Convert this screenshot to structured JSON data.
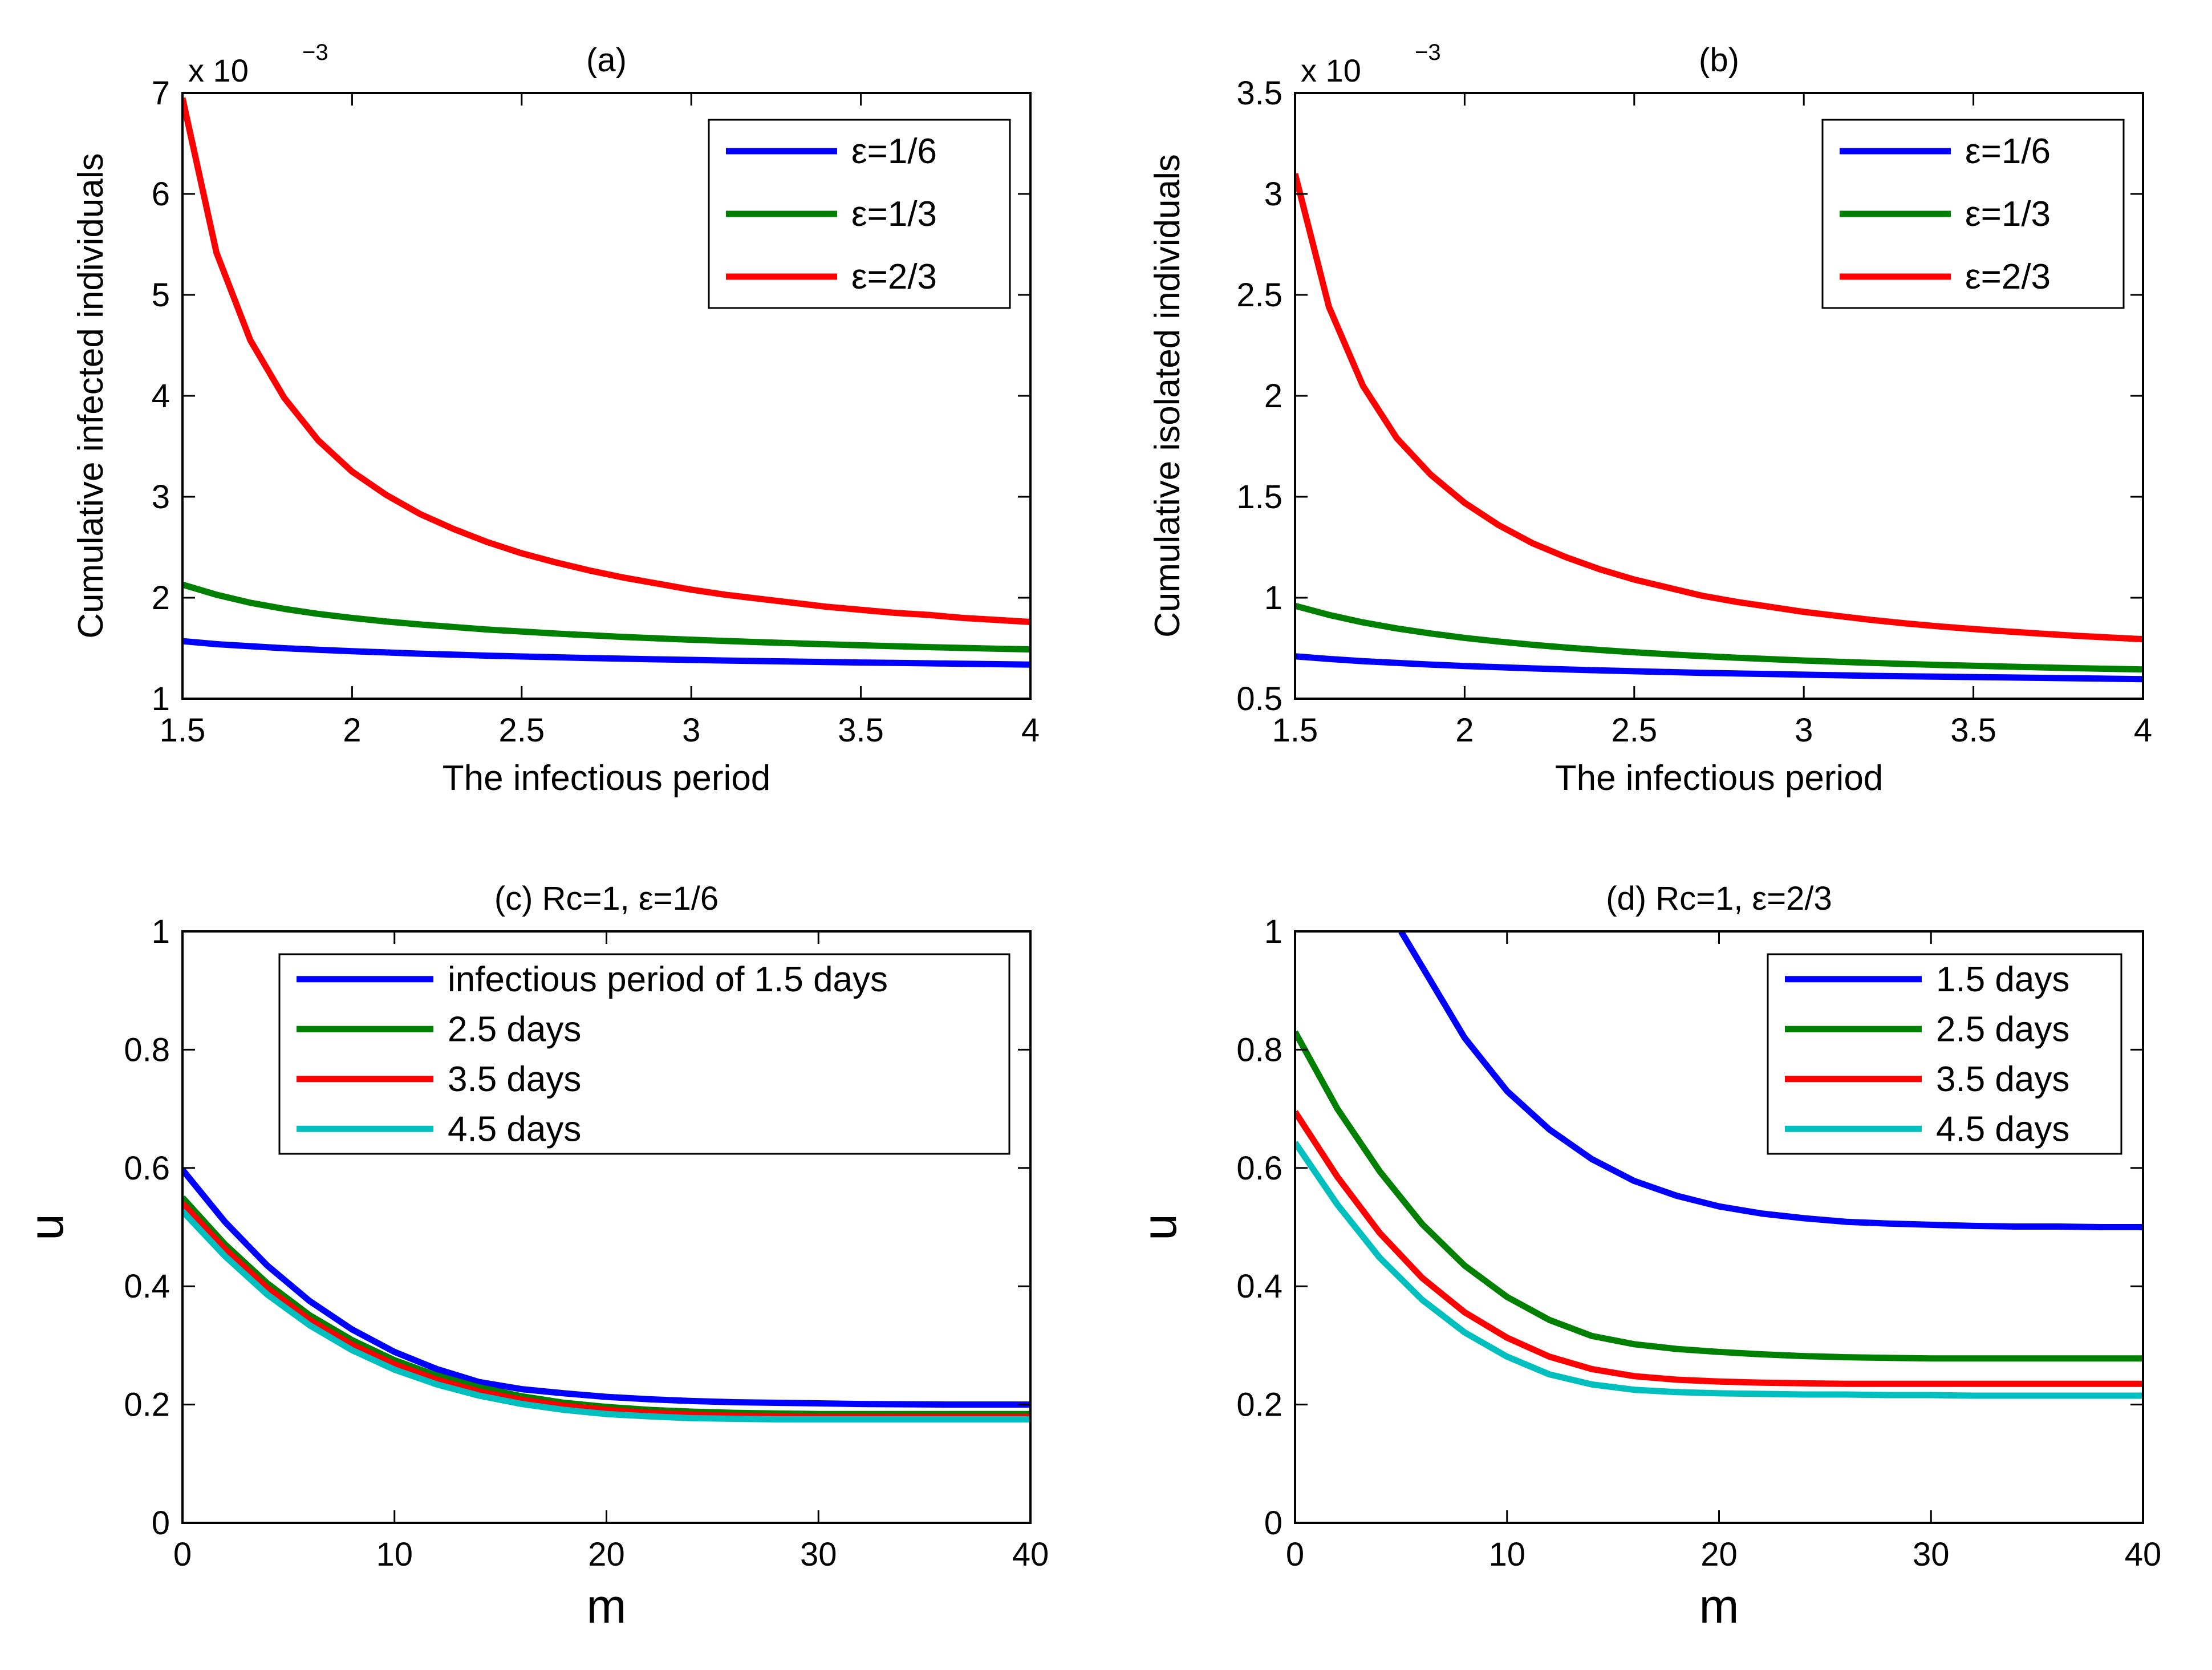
{
  "figure": {
    "panels": 4,
    "series_colors": [
      "#0000ff",
      "#008000",
      "#ff0000",
      "#00bfbf"
    ]
  },
  "chart_data": [
    {
      "id": "a",
      "type": "line",
      "title": "(a)",
      "xlabel": "The infectious period",
      "ylabel": "Cumulative infected individuals",
      "xlim": [
        1.5,
        4
      ],
      "ylim": [
        1,
        7
      ],
      "y_scale_label": {
        "base": "x 10",
        "exponent": "−3"
      },
      "xticks": [
        1.5,
        2,
        2.5,
        3,
        3.5,
        4
      ],
      "xtick_labels": [
        "1.5",
        "2",
        "2.5",
        "3",
        "3.5",
        "4"
      ],
      "yticks": [
        1,
        2,
        3,
        4,
        5,
        6,
        7
      ],
      "ytick_labels": [
        "1",
        "2",
        "3",
        "4",
        "5",
        "6",
        "7"
      ],
      "legend_position": "top-right",
      "x": [
        1.5,
        1.6,
        1.7,
        1.8,
        1.9,
        2.0,
        2.1,
        2.2,
        2.3,
        2.4,
        2.5,
        2.6,
        2.7,
        2.8,
        2.9,
        3.0,
        3.1,
        3.2,
        3.3,
        3.4,
        3.5,
        3.6,
        3.7,
        3.8,
        3.9,
        4.0
      ],
      "series": [
        {
          "name": "ε=1/6",
          "color": "#0000ff",
          "values": [
            1.57,
            1.54,
            1.52,
            1.5,
            1.485,
            1.47,
            1.458,
            1.446,
            1.436,
            1.426,
            1.418,
            1.41,
            1.402,
            1.396,
            1.39,
            1.384,
            1.378,
            1.373,
            1.368,
            1.363,
            1.358,
            1.354,
            1.35,
            1.346,
            1.342,
            1.338
          ]
        },
        {
          "name": "ε=1/3",
          "color": "#008000",
          "values": [
            2.13,
            2.03,
            1.95,
            1.89,
            1.84,
            1.8,
            1.765,
            1.735,
            1.71,
            1.685,
            1.665,
            1.645,
            1.628,
            1.612,
            1.598,
            1.584,
            1.572,
            1.56,
            1.549,
            1.539,
            1.529,
            1.52,
            1.511,
            1.503,
            1.495,
            1.488
          ]
        },
        {
          "name": "ε=2/3",
          "color": "#ff0000",
          "values": [
            6.95,
            5.42,
            4.55,
            3.98,
            3.56,
            3.25,
            3.02,
            2.83,
            2.68,
            2.55,
            2.44,
            2.35,
            2.27,
            2.2,
            2.14,
            2.08,
            2.03,
            1.99,
            1.95,
            1.91,
            1.88,
            1.85,
            1.83,
            1.8,
            1.78,
            1.76
          ]
        }
      ]
    },
    {
      "id": "b",
      "type": "line",
      "title": "(b)",
      "xlabel": "The infectious period",
      "ylabel": "Cumulative isolated individuals",
      "xlim": [
        1.5,
        4
      ],
      "ylim": [
        0.5,
        3.5
      ],
      "y_scale_label": {
        "base": "x 10",
        "exponent": "−3"
      },
      "xticks": [
        1.5,
        2,
        2.5,
        3,
        3.5,
        4
      ],
      "xtick_labels": [
        "1.5",
        "2",
        "2.5",
        "3",
        "3.5",
        "4"
      ],
      "yticks": [
        0.5,
        1,
        1.5,
        2,
        2.5,
        3,
        3.5
      ],
      "ytick_labels": [
        "0.5",
        "1",
        "1.5",
        "2",
        "2.5",
        "3",
        "3.5"
      ],
      "legend_position": "top-right",
      "x": [
        1.5,
        1.6,
        1.7,
        1.8,
        1.9,
        2.0,
        2.1,
        2.2,
        2.3,
        2.4,
        2.5,
        2.6,
        2.7,
        2.8,
        2.9,
        3.0,
        3.1,
        3.2,
        3.3,
        3.4,
        3.5,
        3.6,
        3.7,
        3.8,
        3.9,
        4.0
      ],
      "series": [
        {
          "name": "ε=1/6",
          "color": "#0000ff",
          "values": [
            0.71,
            0.697,
            0.686,
            0.677,
            0.669,
            0.662,
            0.656,
            0.65,
            0.645,
            0.64,
            0.636,
            0.632,
            0.628,
            0.625,
            0.622,
            0.619,
            0.616,
            0.613,
            0.611,
            0.609,
            0.607,
            0.605,
            0.603,
            0.601,
            0.599,
            0.597
          ]
        },
        {
          "name": "ε=1/3",
          "color": "#008000",
          "values": [
            0.96,
            0.915,
            0.878,
            0.848,
            0.823,
            0.801,
            0.783,
            0.767,
            0.753,
            0.741,
            0.73,
            0.72,
            0.711,
            0.703,
            0.696,
            0.689,
            0.683,
            0.677,
            0.672,
            0.667,
            0.663,
            0.659,
            0.655,
            0.651,
            0.648,
            0.645
          ]
        },
        {
          "name": "ε=2/3",
          "color": "#ff0000",
          "values": [
            3.1,
            2.44,
            2.05,
            1.79,
            1.61,
            1.47,
            1.36,
            1.27,
            1.2,
            1.14,
            1.09,
            1.05,
            1.01,
            0.98,
            0.955,
            0.93,
            0.91,
            0.89,
            0.873,
            0.858,
            0.845,
            0.833,
            0.822,
            0.812,
            0.803,
            0.795
          ]
        }
      ]
    },
    {
      "id": "c",
      "type": "line",
      "title": "(c) Rc=1, ε=1/6",
      "xlabel": "m",
      "ylabel": "u",
      "xlim": [
        0,
        40
      ],
      "ylim": [
        0,
        1
      ],
      "xticks": [
        0,
        10,
        20,
        30,
        40
      ],
      "xtick_labels": [
        "0",
        "10",
        "20",
        "30",
        "40"
      ],
      "yticks": [
        0,
        0.2,
        0.4,
        0.6,
        0.8,
        1
      ],
      "ytick_labels": [
        "0",
        "0.2",
        "0.4",
        "0.6",
        "0.8",
        "1"
      ],
      "legend_position": "top-right",
      "x": [
        0,
        2,
        4,
        6,
        8,
        10,
        12,
        14,
        16,
        18,
        20,
        22,
        24,
        26,
        28,
        30,
        32,
        34,
        36,
        38,
        40
      ],
      "series": [
        {
          "name": "infectious period of 1.5 days",
          "color": "#0000ff",
          "values": [
            0.597,
            0.509,
            0.435,
            0.375,
            0.327,
            0.289,
            0.26,
            0.238,
            0.226,
            0.219,
            0.213,
            0.209,
            0.206,
            0.204,
            0.203,
            0.202,
            0.201,
            0.2005,
            0.2,
            0.2,
            0.2
          ]
        },
        {
          "name": "2.5 days",
          "color": "#008000",
          "values": [
            0.55,
            0.471,
            0.405,
            0.351,
            0.309,
            0.275,
            0.249,
            0.229,
            0.214,
            0.203,
            0.196,
            0.191,
            0.188,
            0.186,
            0.185,
            0.184,
            0.184,
            0.184,
            0.184,
            0.184,
            0.184
          ]
        },
        {
          "name": "3.5 days",
          "color": "#ff0000",
          "values": [
            0.54,
            0.463,
            0.397,
            0.343,
            0.301,
            0.268,
            0.242,
            0.222,
            0.208,
            0.198,
            0.191,
            0.186,
            0.183,
            0.181,
            0.18,
            0.179,
            0.179,
            0.179,
            0.179,
            0.179,
            0.179
          ]
        },
        {
          "name": "4.5 days",
          "color": "#00bfbf",
          "values": [
            0.527,
            0.451,
            0.386,
            0.334,
            0.292,
            0.259,
            0.234,
            0.215,
            0.201,
            0.191,
            0.184,
            0.18,
            0.177,
            0.176,
            0.175,
            0.175,
            0.175,
            0.175,
            0.175,
            0.175,
            0.175
          ]
        }
      ]
    },
    {
      "id": "d",
      "type": "line",
      "title": "(d) Rc=1, ε=2/3",
      "xlabel": "m",
      "ylabel": "u",
      "xlim": [
        0,
        40
      ],
      "ylim": [
        0,
        1
      ],
      "xticks": [
        0,
        10,
        20,
        30,
        40
      ],
      "xtick_labels": [
        "0",
        "10",
        "20",
        "30",
        "40"
      ],
      "yticks": [
        0,
        0.2,
        0.4,
        0.6,
        0.8,
        1
      ],
      "ytick_labels": [
        "0",
        "0.2",
        "0.4",
        "0.6",
        "0.8",
        "1"
      ],
      "legend_position": "top-right",
      "series": [
        {
          "name": "1.5 days",
          "color": "#0000ff",
          "x": [
            5,
            6,
            8,
            10,
            12,
            14,
            16,
            18,
            20,
            22,
            24,
            26,
            28,
            30,
            32,
            34,
            36,
            38,
            40
          ],
          "values": [
            1.0,
            0.94,
            0.82,
            0.73,
            0.665,
            0.615,
            0.578,
            0.553,
            0.535,
            0.523,
            0.515,
            0.509,
            0.506,
            0.504,
            0.502,
            0.501,
            0.501,
            0.5,
            0.5
          ]
        },
        {
          "name": "2.5 days",
          "color": "#008000",
          "x": [
            0,
            2,
            4,
            6,
            8,
            10,
            12,
            14,
            16,
            18,
            20,
            22,
            24,
            26,
            28,
            30,
            32,
            34,
            36,
            38,
            40
          ],
          "values": [
            0.83,
            0.7,
            0.594,
            0.505,
            0.435,
            0.382,
            0.343,
            0.316,
            0.302,
            0.294,
            0.289,
            0.285,
            0.282,
            0.28,
            0.279,
            0.278,
            0.278,
            0.278,
            0.278,
            0.278,
            0.278
          ]
        },
        {
          "name": "3.5 days",
          "color": "#ff0000",
          "x": [
            0,
            2,
            4,
            6,
            8,
            10,
            12,
            14,
            16,
            18,
            20,
            22,
            24,
            26,
            28,
            30,
            32,
            34,
            36,
            38,
            40
          ],
          "values": [
            0.695,
            0.585,
            0.49,
            0.414,
            0.356,
            0.313,
            0.281,
            0.26,
            0.248,
            0.242,
            0.239,
            0.237,
            0.236,
            0.235,
            0.235,
            0.235,
            0.235,
            0.235,
            0.235,
            0.235,
            0.235
          ]
        },
        {
          "name": "4.5 days",
          "color": "#00bfbf",
          "x": [
            0,
            2,
            4,
            6,
            8,
            10,
            12,
            14,
            16,
            18,
            20,
            22,
            24,
            26,
            28,
            30,
            32,
            34,
            36,
            38,
            40
          ],
          "values": [
            0.643,
            0.538,
            0.448,
            0.377,
            0.322,
            0.281,
            0.251,
            0.234,
            0.225,
            0.221,
            0.219,
            0.218,
            0.217,
            0.217,
            0.216,
            0.216,
            0.215,
            0.215,
            0.215,
            0.215,
            0.215
          ]
        }
      ]
    }
  ]
}
